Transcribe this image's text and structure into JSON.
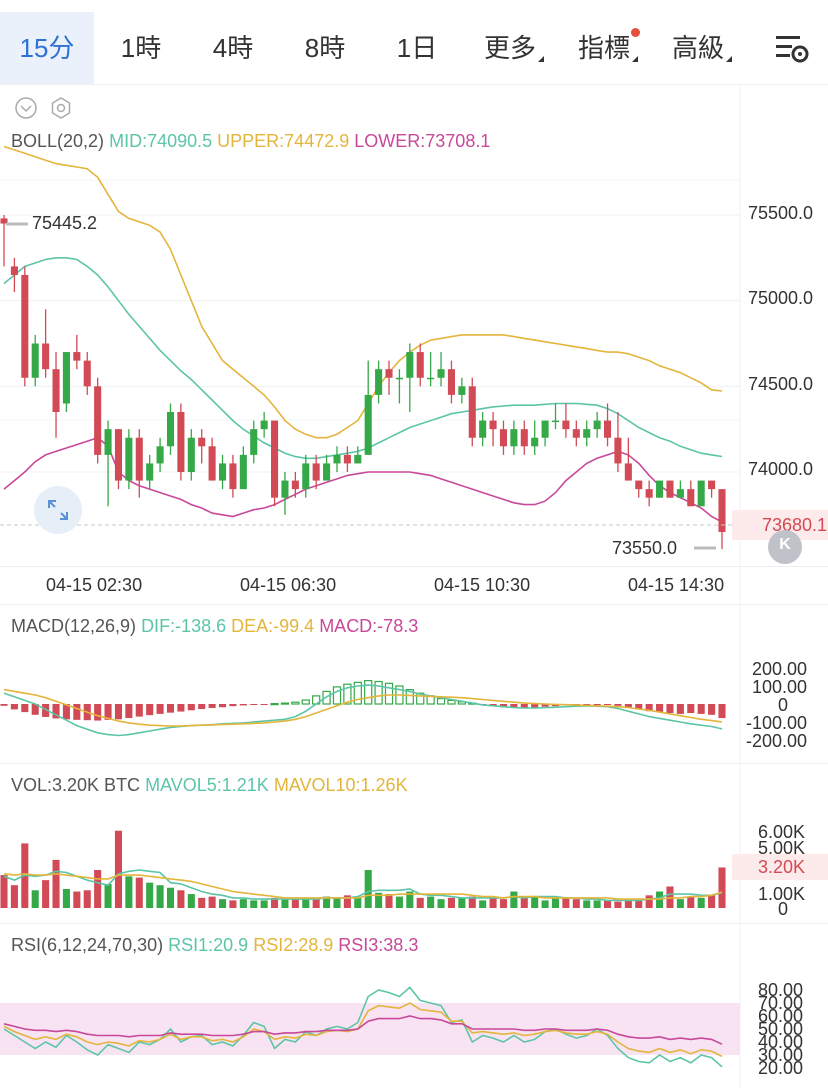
{
  "tabs": [
    {
      "label": "15分",
      "active": true
    },
    {
      "label": "1時"
    },
    {
      "label": "4時"
    },
    {
      "label": "8時"
    },
    {
      "label": "1日"
    },
    {
      "label": "更多"
    },
    {
      "label": "指標"
    },
    {
      "label": "高級"
    }
  ],
  "colors": {
    "up": "#35a847",
    "down": "#d24a55",
    "mid": "#5cc5a8",
    "upper": "#e3b53b",
    "lower": "#c8489a",
    "accent": "#2f72d6"
  },
  "boll": {
    "name": "BOLL(20,2)",
    "mid": "MID:74090.5",
    "upper": "UPPER:74472.9",
    "lower": "LOWER:73708.1"
  },
  "price_axis": [
    "75500.0",
    "75000.0",
    "74500.0",
    "74000.0"
  ],
  "last_price": "73680.1",
  "high_marker": "75445.2",
  "low_marker": "73550.0",
  "time_axis": [
    "04-15 02:30",
    "04-15 06:30",
    "04-15 10:30",
    "04-15 14:30"
  ],
  "macd": {
    "name": "MACD(12,26,9)",
    "dif": "DIF:-138.6",
    "dea": "DEA:-99.4",
    "macd": "MACD:-78.3",
    "axis": [
      "200.00",
      "100.00",
      "0",
      "-100.00",
      "-200.00"
    ]
  },
  "vol": {
    "name": "VOL:3.20K BTC",
    "mavol5": "MAVOL5:1.21K",
    "mavol10": "MAVOL10:1.26K",
    "axis": [
      "6.00K",
      "5.00K",
      "3.20K",
      "1.00K",
      "0"
    ]
  },
  "rsi": {
    "name": "RSI(6,12,24,70,30)",
    "rsi1": "RSI1:20.9",
    "rsi2": "RSI2:28.9",
    "rsi3": "RSI3:38.3",
    "axis": [
      "80.00",
      "70.00",
      "60.00",
      "50.00",
      "40.00",
      "30.00",
      "20.00"
    ]
  },
  "chart_data": {
    "type": "candlestick",
    "candles": [
      [
        75480,
        75450,
        75200,
        75500
      ],
      [
        75200,
        75150,
        75050,
        75250
      ],
      [
        75150,
        74550,
        74500,
        75200
      ],
      [
        74550,
        74750,
        74500,
        74800
      ],
      [
        74750,
        74600,
        74550,
        74950
      ],
      [
        74600,
        74350,
        74200,
        74700
      ],
      [
        74400,
        74700,
        74350,
        74700
      ],
      [
        74700,
        74650,
        74600,
        74800
      ],
      [
        74650,
        74500,
        74450,
        74700
      ],
      [
        74500,
        74100,
        74050,
        74550
      ],
      [
        74100,
        74250,
        73800,
        74300
      ],
      [
        74250,
        73950,
        73900,
        74250
      ],
      [
        73950,
        74200,
        73900,
        74250
      ],
      [
        74200,
        73950,
        73850,
        74250
      ],
      [
        73950,
        74050,
        73900,
        74100
      ],
      [
        74050,
        74150,
        74000,
        74200
      ],
      [
        74150,
        74350,
        74100,
        74400
      ],
      [
        74350,
        74000,
        73950,
        74400
      ],
      [
        74000,
        74200,
        73950,
        74250
      ],
      [
        74200,
        74150,
        74050,
        74250
      ],
      [
        74150,
        73950,
        73950,
        74200
      ],
      [
        73950,
        74050,
        73900,
        74100
      ],
      [
        74050,
        73900,
        73850,
        74100
      ],
      [
        73900,
        74100,
        73900,
        74150
      ],
      [
        74100,
        74250,
        74050,
        74300
      ],
      [
        74250,
        74300,
        74200,
        74350
      ],
      [
        74300,
        73850,
        73800,
        74300
      ],
      [
        73850,
        73950,
        73750,
        74000
      ],
      [
        73950,
        73900,
        73850,
        74000
      ],
      [
        73900,
        74050,
        73850,
        74100
      ],
      [
        74050,
        73950,
        73900,
        74100
      ],
      [
        73950,
        74050,
        73950,
        74100
      ],
      [
        74050,
        74100,
        74000,
        74150
      ],
      [
        74100,
        74050,
        74000,
        74150
      ],
      [
        74050,
        74100,
        74050,
        74150
      ],
      [
        74100,
        74450,
        74100,
        74650
      ],
      [
        74450,
        74600,
        74400,
        74650
      ],
      [
        74600,
        74550,
        74450,
        74650
      ],
      [
        74550,
        74550,
        74400,
        74600
      ],
      [
        74550,
        74700,
        74350,
        74750
      ],
      [
        74700,
        74550,
        74500,
        74750
      ],
      [
        74550,
        74550,
        74500,
        74700
      ],
      [
        74550,
        74600,
        74500,
        74700
      ],
      [
        74600,
        74450,
        74400,
        74650
      ],
      [
        74450,
        74500,
        74400,
        74550
      ],
      [
        74500,
        74200,
        74150,
        74550
      ],
      [
        74200,
        74300,
        74150,
        74350
      ],
      [
        74300,
        74250,
        74150,
        74350
      ],
      [
        74250,
        74150,
        74100,
        74300
      ],
      [
        74150,
        74250,
        74100,
        74300
      ],
      [
        74250,
        74150,
        74100,
        74300
      ],
      [
        74150,
        74200,
        74100,
        74300
      ],
      [
        74200,
        74300,
        74150,
        74300
      ],
      [
        74300,
        74300,
        74250,
        74400
      ],
      [
        74300,
        74250,
        74200,
        74400
      ],
      [
        74250,
        74200,
        74150,
        74300
      ],
      [
        74200,
        74250,
        74150,
        74300
      ],
      [
        74250,
        74300,
        74200,
        74350
      ],
      [
        74300,
        74200,
        74150,
        74400
      ],
      [
        74200,
        74050,
        74000,
        74350
      ],
      [
        74050,
        73950,
        73950,
        74200
      ],
      [
        73950,
        73900,
        73850,
        73950
      ],
      [
        73900,
        73850,
        73800,
        73950
      ],
      [
        73850,
        73950,
        73850,
        73950
      ],
      [
        73950,
        73850,
        73850,
        73950
      ],
      [
        73850,
        73900,
        73850,
        73950
      ],
      [
        73900,
        73800,
        73800,
        73950
      ],
      [
        73800,
        73950,
        73800,
        73950
      ],
      [
        73950,
        73900,
        73850,
        73950
      ],
      [
        73900,
        73650,
        73550,
        73900
      ]
    ],
    "volume": [
      2.6,
      1.8,
      5.1,
      1.4,
      2.2,
      3.8,
      1.5,
      1.3,
      1.4,
      3.0,
      1.9,
      6.1,
      2.5,
      2.4,
      2.0,
      1.8,
      1.6,
      1.4,
      1.1,
      0.8,
      0.9,
      0.7,
      0.6,
      0.7,
      0.6,
      0.6,
      0.8,
      0.7,
      0.8,
      0.8,
      0.7,
      0.9,
      0.8,
      1.0,
      0.9,
      3.0,
      1.2,
      1.1,
      0.9,
      1.3,
      0.8,
      0.9,
      0.7,
      0.8,
      0.8,
      0.9,
      0.6,
      0.8,
      0.7,
      1.3,
      0.8,
      0.9,
      0.6,
      0.9,
      0.8,
      0.7,
      0.6,
      0.6,
      0.6,
      0.5,
      0.6,
      0.7,
      1.0,
      1.3,
      1.7,
      0.7,
      0.9,
      0.8,
      1.0,
      3.2
    ],
    "macd_hist": [
      -10,
      -30,
      -45,
      -60,
      -72,
      -80,
      -85,
      -88,
      -90,
      -92,
      -88,
      -85,
      -78,
      -70,
      -62,
      -55,
      -48,
      -42,
      -35,
      -28,
      -22,
      -18,
      -12,
      -8,
      -4,
      -2,
      2,
      5,
      10,
      22,
      45,
      70,
      95,
      110,
      120,
      130,
      125,
      115,
      100,
      80,
      60,
      45,
      30,
      20,
      12,
      5,
      -5,
      -12,
      -18,
      -22,
      -25,
      -20,
      -15,
      -12,
      -8,
      -5,
      -3,
      -2,
      -3,
      -10,
      -20,
      -30,
      -40,
      -45,
      -50,
      -55,
      -50,
      -55,
      -60,
      -78
    ],
    "dif": [
      60,
      40,
      20,
      0,
      -30,
      -60,
      -90,
      -120,
      -140,
      -160,
      -170,
      -175,
      -170,
      -160,
      -150,
      -140,
      -130,
      -125,
      -120,
      -118,
      -115,
      -110,
      -108,
      -105,
      -100,
      -95,
      -90,
      -85,
      -70,
      -40,
      0,
      40,
      70,
      90,
      100,
      105,
      100,
      90,
      80,
      70,
      55,
      45,
      35,
      25,
      15,
      5,
      -5,
      -10,
      -15,
      -20,
      -22,
      -22,
      -20,
      -18,
      -15,
      -12,
      -10,
      -12,
      -15,
      -25,
      -40,
      -55,
      -70,
      -80,
      -90,
      -100,
      -110,
      -118,
      -125,
      -138.6
    ],
    "dea": [
      80,
      70,
      60,
      50,
      35,
      15,
      -5,
      -25,
      -45,
      -65,
      -80,
      -95,
      -105,
      -112,
      -118,
      -120,
      -122,
      -122,
      -120,
      -118,
      -116,
      -114,
      -112,
      -110,
      -108,
      -105,
      -100,
      -95,
      -85,
      -70,
      -50,
      -30,
      -10,
      10,
      25,
      35,
      45,
      50,
      50,
      48,
      45,
      42,
      40,
      38,
      35,
      30,
      25,
      20,
      15,
      10,
      5,
      2,
      0,
      -2,
      -4,
      -6,
      -8,
      -10,
      -12,
      -15,
      -20,
      -28,
      -35,
      -45,
      -55,
      -65,
      -75,
      -85,
      -92,
      -99.4
    ],
    "mavol5": [
      2.5,
      2.2,
      2.6,
      2.5,
      2.6,
      2.9,
      2.8,
      2.5,
      2.2,
      2.0,
      1.8,
      2.7,
      2.9,
      3.0,
      2.9,
      2.8,
      2.0,
      1.9,
      1.6,
      1.3,
      1.1,
      1.0,
      0.8,
      0.8,
      0.7,
      0.7,
      0.7,
      0.7,
      0.7,
      0.7,
      0.7,
      0.8,
      0.8,
      0.8,
      0.9,
      1.3,
      1.4,
      1.4,
      1.4,
      1.5,
      1.1,
      1.0,
      1.0,
      0.9,
      0.8,
      0.8,
      0.8,
      0.8,
      0.8,
      0.9,
      0.8,
      0.9,
      0.9,
      0.9,
      0.8,
      0.8,
      0.7,
      0.7,
      0.6,
      0.6,
      0.6,
      0.6,
      0.7,
      0.8,
      1.1,
      1.1,
      1.1,
      1.0,
      1.0,
      1.21
    ],
    "mavol10": [
      2.7,
      2.6,
      2.7,
      2.6,
      2.6,
      2.7,
      2.6,
      2.5,
      2.4,
      2.3,
      2.3,
      2.6,
      2.6,
      2.6,
      2.5,
      2.4,
      2.3,
      2.2,
      2.1,
      1.9,
      1.7,
      1.5,
      1.3,
      1.2,
      1.1,
      1.0,
      0.9,
      0.8,
      0.8,
      0.8,
      0.8,
      0.8,
      0.8,
      0.8,
      0.8,
      1.0,
      1.0,
      1.0,
      1.1,
      1.1,
      1.1,
      1.1,
      1.1,
      1.1,
      1.1,
      1.0,
      0.9,
      0.9,
      0.8,
      0.9,
      0.9,
      0.9,
      0.8,
      0.8,
      0.8,
      0.8,
      0.8,
      0.8,
      0.8,
      0.7,
      0.7,
      0.7,
      0.7,
      0.7,
      0.8,
      0.8,
      0.9,
      0.9,
      1.0,
      1.26
    ],
    "rsi1": [
      50,
      45,
      40,
      35,
      40,
      36,
      45,
      40,
      34,
      30,
      38,
      35,
      32,
      40,
      38,
      42,
      50,
      40,
      44,
      45,
      38,
      40,
      37,
      45,
      55,
      52,
      35,
      42,
      40,
      48,
      45,
      50,
      52,
      50,
      55,
      75,
      80,
      78,
      75,
      82,
      72,
      70,
      68,
      55,
      57,
      40,
      45,
      43,
      40,
      45,
      40,
      42,
      48,
      50,
      46,
      43,
      45,
      50,
      45,
      35,
      28,
      25,
      24,
      30,
      25,
      28,
      24,
      30,
      28,
      20.9
    ],
    "rsi2": [
      52,
      48,
      45,
      42,
      44,
      42,
      46,
      44,
      40,
      38,
      40,
      39,
      37,
      41,
      40,
      42,
      46,
      42,
      44,
      44,
      41,
      42,
      40,
      44,
      50,
      48,
      42,
      44,
      43,
      46,
      45,
      48,
      49,
      48,
      50,
      64,
      68,
      67,
      66,
      70,
      65,
      64,
      63,
      56,
      56,
      47,
      48,
      47,
      46,
      47,
      45,
      46,
      48,
      49,
      47,
      46,
      46,
      48,
      46,
      40,
      35,
      33,
      32,
      35,
      32,
      34,
      31,
      34,
      33,
      28.9
    ],
    "rsi3": [
      54,
      52,
      50,
      49,
      49,
      48,
      49,
      48,
      46,
      45,
      45,
      45,
      44,
      45,
      45,
      45,
      47,
      46,
      46,
      46,
      45,
      45,
      45,
      46,
      48,
      48,
      46,
      47,
      47,
      48,
      48,
      49,
      49,
      49,
      50,
      56,
      58,
      58,
      58,
      60,
      58,
      58,
      57,
      54,
      54,
      50,
      50,
      50,
      50,
      50,
      49,
      49,
      50,
      50,
      49,
      49,
      49,
      50,
      49,
      46,
      44,
      43,
      43,
      44,
      42,
      43,
      42,
      43,
      42,
      38.3
    ],
    "boll_mid": [
      75100,
      75150,
      75200,
      75220,
      75240,
      75250,
      75250,
      75240,
      75200,
      75150,
      75080,
      75000,
      74920,
      74850,
      74780,
      74710,
      74650,
      74590,
      74540,
      74480,
      74420,
      74360,
      74300,
      74250,
      74210,
      74170,
      74140,
      74110,
      74090,
      74080,
      74080,
      74090,
      74100,
      74110,
      74120,
      74140,
      74170,
      74200,
      74230,
      74260,
      74280,
      74300,
      74320,
      74340,
      74350,
      74360,
      74370,
      74380,
      74385,
      74390,
      74390,
      74390,
      74395,
      74400,
      74400,
      74400,
      74395,
      74390,
      74370,
      74340,
      74300,
      74260,
      74230,
      74200,
      74180,
      74150,
      74130,
      74110,
      74100,
      74090.5
    ],
    "boll_upper": [
      75900,
      75880,
      75860,
      75840,
      75820,
      75800,
      75790,
      75780,
      75770,
      75720,
      75620,
      75520,
      75480,
      75460,
      75440,
      75400,
      75300,
      75150,
      75000,
      74850,
      74750,
      74650,
      74600,
      74550,
      74500,
      74450,
      74380,
      74300,
      74250,
      74220,
      74200,
      74200,
      74220,
      74260,
      74300,
      74400,
      74500,
      74580,
      74650,
      74700,
      74740,
      74770,
      74780,
      74790,
      74800,
      74800,
      74800,
      74800,
      74800,
      74790,
      74780,
      74770,
      74760,
      74750,
      74740,
      74730,
      74720,
      74710,
      74700,
      74700,
      74690,
      74670,
      74650,
      74620,
      74600,
      74580,
      74550,
      74520,
      74480,
      74472.9
    ],
    "boll_lower": [
      73900,
      73950,
      74000,
      74060,
      74100,
      74120,
      74140,
      74160,
      74180,
      74200,
      74150,
      74000,
      73950,
      73920,
      73900,
      73880,
      73860,
      73840,
      73810,
      73790,
      73760,
      73750,
      73740,
      73760,
      73780,
      73790,
      73810,
      73840,
      73870,
      73900,
      73920,
      73940,
      73960,
      73980,
      73990,
      74000,
      74000,
      74000,
      74000,
      74000,
      73990,
      73980,
      73960,
      73940,
      73920,
      73900,
      73880,
      73860,
      73840,
      73820,
      73810,
      73810,
      73830,
      73880,
      73950,
      74000,
      74050,
      74080,
      74100,
      74120,
      74100,
      74050,
      73980,
      73920,
      73880,
      73850,
      73820,
      73790,
      73740,
      73708.1
    ]
  }
}
